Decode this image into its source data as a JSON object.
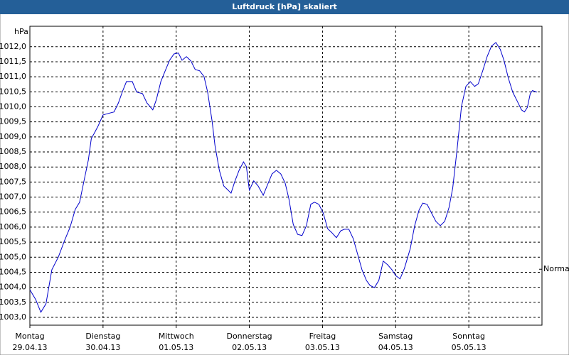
{
  "chart_data": {
    "type": "line",
    "title": "Luftdruck [hPa] skaliert",
    "y_label": "hPa",
    "annotation": {
      "text": "Normal",
      "value": 1004.6
    },
    "xlim": [
      0,
      7
    ],
    "ylim": [
      1002.74,
      1012.68
    ],
    "grid": true,
    "xticks": [
      {
        "value": 0,
        "label": "Montag",
        "date": "29.04.13"
      },
      {
        "value": 1,
        "label": "Dienstag",
        "date": "30.04.13"
      },
      {
        "value": 2,
        "label": "Mittwoch",
        "date": "01.05.13"
      },
      {
        "value": 3,
        "label": "Donnerstag",
        "date": "02.05.13"
      },
      {
        "value": 4,
        "label": "Freitag",
        "date": "03.05.13"
      },
      {
        "value": 5,
        "label": "Samstag",
        "date": "04.05.13"
      },
      {
        "value": 6,
        "label": "Sonntag",
        "date": "05.05.13"
      }
    ],
    "yticks": [
      {
        "value": 1003.0,
        "label": "1003,0"
      },
      {
        "value": 1003.5,
        "label": "1003,5"
      },
      {
        "value": 1004.0,
        "label": "1004,0"
      },
      {
        "value": 1004.5,
        "label": "1004,5"
      },
      {
        "value": 1005.0,
        "label": "1005,0"
      },
      {
        "value": 1005.5,
        "label": "1005,5"
      },
      {
        "value": 1006.0,
        "label": "1006,0"
      },
      {
        "value": 1006.5,
        "label": "1006,5"
      },
      {
        "value": 1007.0,
        "label": "1007,0"
      },
      {
        "value": 1007.5,
        "label": "1007,5"
      },
      {
        "value": 1008.0,
        "label": "1008,0"
      },
      {
        "value": 1008.5,
        "label": "1008,5"
      },
      {
        "value": 1009.0,
        "label": "1009,0"
      },
      {
        "value": 1009.5,
        "label": "1009,5"
      },
      {
        "value": 1010.0,
        "label": "1010,0"
      },
      {
        "value": 1010.5,
        "label": "1010,5"
      },
      {
        "value": 1011.0,
        "label": "1011,0"
      },
      {
        "value": 1011.5,
        "label": "1011,5"
      },
      {
        "value": 1012.0,
        "label": "1012,0"
      }
    ],
    "series": [
      {
        "color": "#0000cc",
        "x": [
          0,
          0.08,
          0.15,
          0.22,
          0.3,
          0.39,
          0.47,
          0.55,
          0.62,
          0.68,
          0.74,
          0.8,
          0.84,
          0.88,
          0.93,
          1.0,
          1.07,
          1.15,
          1.21,
          1.27,
          1.32,
          1.4,
          1.46,
          1.54,
          1.6,
          1.68,
          1.73,
          1.79,
          1.85,
          1.91,
          1.97,
          2.03,
          2.08,
          2.14,
          2.2,
          2.26,
          2.32,
          2.38,
          2.43,
          2.49,
          2.53,
          2.59,
          2.65,
          2.71,
          2.75,
          2.8,
          2.86,
          2.92,
          2.96,
          3.0,
          3.06,
          3.12,
          3.19,
          3.25,
          3.31,
          3.37,
          3.43,
          3.49,
          3.54,
          3.6,
          3.66,
          3.72,
          3.78,
          3.84,
          3.89,
          3.95,
          4.01,
          4.07,
          4.13,
          4.19,
          4.25,
          4.3,
          4.36,
          4.42,
          4.48,
          4.54,
          4.6,
          4.65,
          4.71,
          4.77,
          4.83,
          4.89,
          4.95,
          5.0,
          5.06,
          5.12,
          5.2,
          5.26,
          5.32,
          5.37,
          5.43,
          5.49,
          5.55,
          5.61,
          5.67,
          5.73,
          5.78,
          5.84,
          5.9,
          5.96,
          6.02,
          6.08,
          6.13,
          6.19,
          6.25,
          6.31,
          6.37,
          6.43,
          6.48,
          6.54,
          6.6,
          6.66,
          6.72,
          6.76,
          6.8,
          6.84,
          6.87,
          6.93
        ],
        "values": [
          1003.92,
          1003.59,
          1003.17,
          1003.45,
          1004.58,
          1005.01,
          1005.53,
          1006.0,
          1006.59,
          1006.83,
          1007.54,
          1008.24,
          1008.95,
          1009.12,
          1009.35,
          1009.73,
          1009.78,
          1009.83,
          1010.13,
          1010.54,
          1010.84,
          1010.84,
          1010.49,
          1010.44,
          1010.13,
          1009.9,
          1010.25,
          1010.84,
          1011.2,
          1011.55,
          1011.76,
          1011.79,
          1011.55,
          1011.67,
          1011.53,
          1011.24,
          1011.2,
          1011.01,
          1010.49,
          1009.54,
          1008.72,
          1007.89,
          1007.37,
          1007.23,
          1007.13,
          1007.51,
          1007.89,
          1008.17,
          1008.01,
          1007.23,
          1007.54,
          1007.37,
          1007.06,
          1007.42,
          1007.77,
          1007.89,
          1007.77,
          1007.46,
          1006.95,
          1006.09,
          1005.76,
          1005.72,
          1006.05,
          1006.76,
          1006.83,
          1006.76,
          1006.47,
          1005.95,
          1005.81,
          1005.65,
          1005.88,
          1005.93,
          1005.93,
          1005.62,
          1005.1,
          1004.58,
          1004.23,
          1004.06,
          1003.99,
          1004.23,
          1004.87,
          1004.75,
          1004.58,
          1004.39,
          1004.28,
          1004.63,
          1005.29,
          1006.05,
          1006.57,
          1006.8,
          1006.76,
          1006.47,
          1006.19,
          1006.05,
          1006.19,
          1006.66,
          1007.3,
          1008.6,
          1010.02,
          1010.68,
          1010.84,
          1010.68,
          1010.77,
          1011.2,
          1011.67,
          1012.02,
          1012.14,
          1011.91,
          1011.55,
          1010.96,
          1010.49,
          1010.2,
          1009.9,
          1009.83,
          1009.98,
          1010.44,
          1010.54,
          1010.49
        ]
      }
    ]
  }
}
